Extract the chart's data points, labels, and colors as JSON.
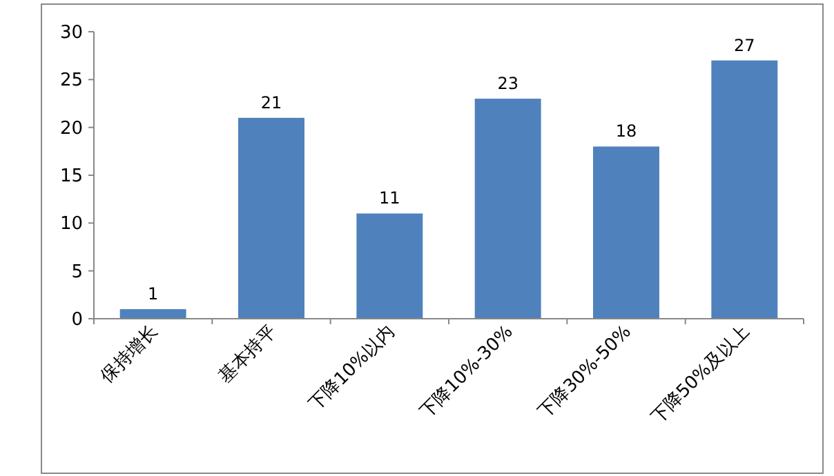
{
  "chart_data": {
    "type": "bar",
    "categories": [
      "保持增长",
      "基本持平",
      "下降10%以内",
      "下降10%-30%",
      "下降30%-50%",
      "下降50%及以上"
    ],
    "values": [
      1,
      21,
      11,
      23,
      18,
      27
    ],
    "color": "#4f81bd",
    "ylim": [
      0,
      30
    ],
    "yticks": [
      0,
      5,
      10,
      15,
      20,
      25,
      30
    ],
    "data_labels": true,
    "grid": false
  }
}
